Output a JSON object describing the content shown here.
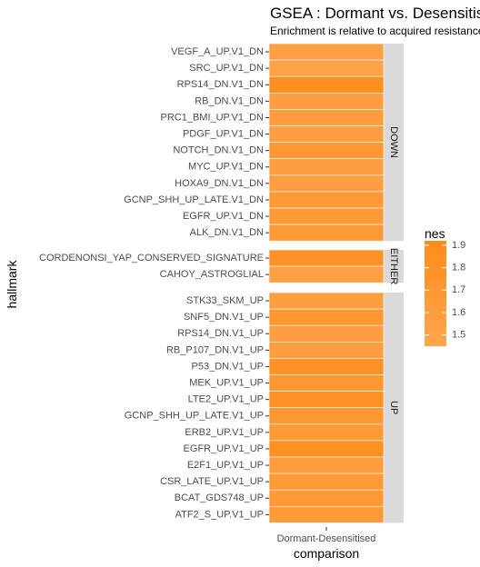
{
  "chart_data": {
    "type": "heatmap",
    "title": "GSEA : Dormant vs. Desensitised",
    "subtitle": "Enrichment is relative to acquired resistance",
    "xlabel": "comparison",
    "ylabel": "hallmark",
    "x_categories": [
      "Dormant-Desensitised"
    ],
    "legend": {
      "title": "nes",
      "ticks": [
        1.5,
        1.6,
        1.7,
        1.8,
        1.9
      ],
      "range": [
        1.45,
        1.92
      ],
      "low_color": "#ffa54f",
      "high_color": "#ff8c1a",
      "placement": "right"
    },
    "facets": [
      {
        "label": "DOWN",
        "rows": [
          {
            "name": "VEGF_A_UP.V1_DN",
            "value": 1.55
          },
          {
            "name": "SRC_UP.V1_DN",
            "value": 1.52
          },
          {
            "name": "RPS14_DN.V1_DN",
            "value": 1.86
          },
          {
            "name": "RB_DN.V1_DN",
            "value": 1.58
          },
          {
            "name": "PRC1_BMI_UP.V1_DN",
            "value": 1.6
          },
          {
            "name": "PDGF_UP.V1_DN",
            "value": 1.58
          },
          {
            "name": "NOTCH_DN.V1_DN",
            "value": 1.7
          },
          {
            "name": "MYC_UP.V1_DN",
            "value": 1.58
          },
          {
            "name": "HOXA9_DN.V1_DN",
            "value": 1.58
          },
          {
            "name": "GCNP_SHH_UP_LATE.V1_DN",
            "value": 1.66
          },
          {
            "name": "EGFR_UP.V1_DN",
            "value": 1.66
          },
          {
            "name": "ALK_DN.V1_DN",
            "value": 1.66
          }
        ]
      },
      {
        "label": "EITHER",
        "rows": [
          {
            "name": "CORDENONSI_YAP_CONSERVED_SIGNATURE",
            "value": 1.78
          },
          {
            "name": "CAHOY_ASTROGLIAL",
            "value": 1.55
          }
        ]
      },
      {
        "label": "UP",
        "rows": [
          {
            "name": "STK33_SKM_UP",
            "value": 1.58
          },
          {
            "name": "SNF5_DN.V1_UP",
            "value": 1.7
          },
          {
            "name": "RPS14_DN.V1_UP",
            "value": 1.58
          },
          {
            "name": "RB_P107_DN.V1_UP",
            "value": 1.58
          },
          {
            "name": "P53_DN.V1_UP",
            "value": 1.82
          },
          {
            "name": "MEK_UP.V1_UP",
            "value": 1.7
          },
          {
            "name": "LTE2_UP.V1_UP",
            "value": 1.82
          },
          {
            "name": "GCNP_SHH_UP_LATE.V1_UP",
            "value": 1.7
          },
          {
            "name": "ERB2_UP.V1_UP",
            "value": 1.66
          },
          {
            "name": "EGFR_UP.V1_UP",
            "value": 1.85
          },
          {
            "name": "E2F1_UP.V1_UP",
            "value": 1.62
          },
          {
            "name": "CSR_LATE_UP.V1_UP",
            "value": 1.66
          },
          {
            "name": "BCAT_GDS748_UP",
            "value": 1.66
          },
          {
            "name": "ATF2_S_UP.V1_UP",
            "value": 1.66
          }
        ]
      }
    ]
  }
}
